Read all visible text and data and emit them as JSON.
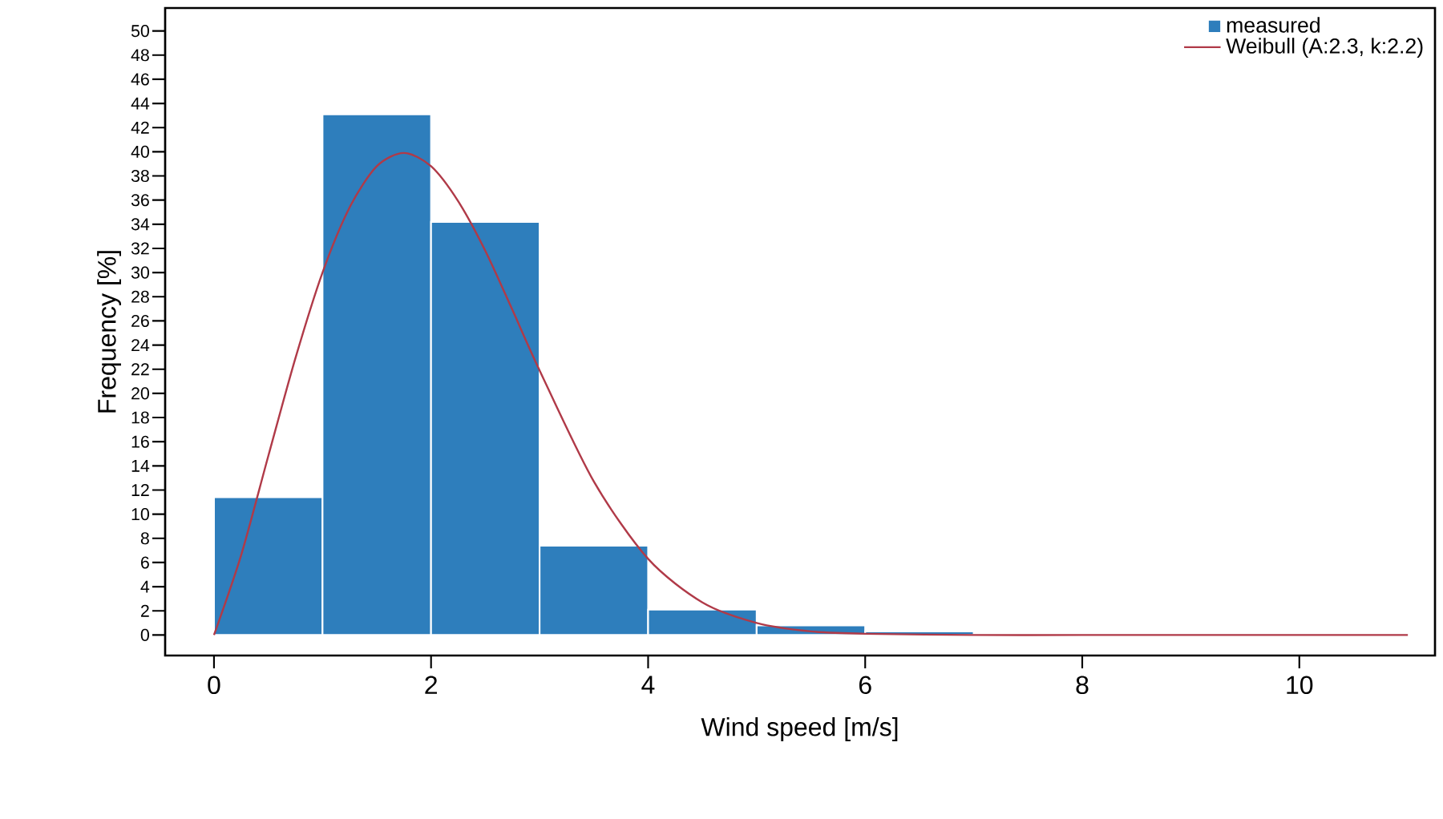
{
  "chart_data": {
    "type": "histogram",
    "xlabel": "Wind speed [m/s]",
    "ylabel": "Frequency [%]",
    "bins": [
      0,
      1,
      2,
      3,
      4,
      5,
      6,
      7
    ],
    "series": [
      {
        "name": "measured",
        "color": "#2e7ebc",
        "values": [
          11.4,
          43.1,
          34.2,
          7.4,
          2.1,
          0.8,
          0.3
        ]
      },
      {
        "name": "Weibull (A:2.3, k:2.2)",
        "type": "line",
        "color": "#b03a48",
        "x": [
          0,
          0.25,
          0.5,
          0.75,
          1,
          1.25,
          1.5,
          1.75,
          2,
          2.25,
          2.5,
          2.75,
          3,
          3.5,
          4,
          4.5,
          5,
          5.5,
          6,
          7,
          8,
          9,
          10,
          11
        ],
        "values": [
          0,
          6.6,
          14.8,
          22.9,
          30.0,
          35.4,
          38.8,
          39.9,
          38.8,
          35.9,
          31.8,
          26.9,
          21.9,
          12.7,
          6.3,
          2.7,
          1.0,
          0.3,
          0.1,
          0,
          0,
          0,
          0,
          0
        ]
      }
    ],
    "xlim": [
      -0.45,
      11.25
    ],
    "ylim": [
      -1.7,
      51.9
    ],
    "xticks": [
      0,
      2,
      4,
      6,
      8,
      10
    ],
    "yticks": [
      0,
      2,
      4,
      6,
      8,
      10,
      12,
      14,
      16,
      18,
      20,
      22,
      24,
      26,
      28,
      30,
      32,
      34,
      36,
      38,
      40,
      42,
      44,
      46,
      48,
      50
    ],
    "legend": "top right",
    "grid": false
  }
}
